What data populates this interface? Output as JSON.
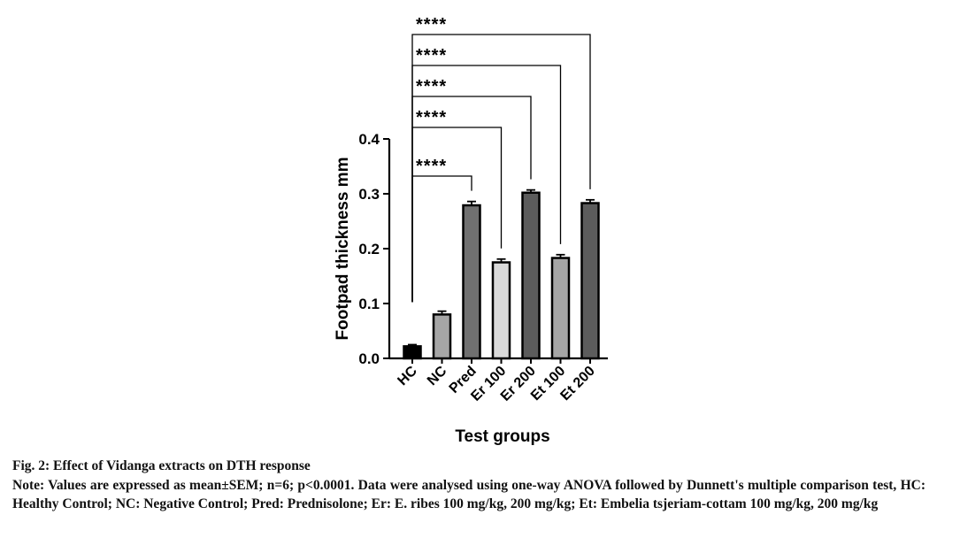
{
  "chart_data": {
    "type": "bar",
    "ylabel": "Footpad thickness mm",
    "xlabel": "Test groups",
    "categories": [
      "HC",
      "NC",
      "Pred",
      "Er 100",
      "Er 200",
      "Et 100",
      "Et 200"
    ],
    "values": [
      0.022,
      0.08,
      0.279,
      0.175,
      0.302,
      0.183,
      0.283
    ],
    "errors": [
      0.003,
      0.006,
      0.007,
      0.006,
      0.005,
      0.006,
      0.006
    ],
    "bar_colors": [
      "#000000",
      "#a6a6a6",
      "#707070",
      "#d9d9d9",
      "#5c5c5c",
      "#a6a6a6",
      "#5c5c5c"
    ],
    "ylim": [
      0,
      0.4
    ],
    "yticks": [
      "0.0",
      "0.1",
      "0.2",
      "0.3",
      "0.4"
    ],
    "comparisons": [
      {
        "from": "HC",
        "to": "Pred",
        "label": "****"
      },
      {
        "from": "HC",
        "to": "Er 100",
        "label": "****"
      },
      {
        "from": "HC",
        "to": "Er 200",
        "label": "****"
      },
      {
        "from": "HC",
        "to": "Et 100",
        "label": "****"
      },
      {
        "from": "HC",
        "to": "Et 200",
        "label": "****"
      }
    ]
  },
  "caption": {
    "title": "Fig. 2: Effect of Vidanga extracts on DTH response",
    "note": "Note: Values are expressed as mean±SEM; n=6; p<0.0001. Data were analysed using one-way ANOVA followed by Dunnett's multiple comparison test, HC: Healthy Control; NC: Negative Control; Pred: Prednisolone; Er: E. ribes 100 mg/kg, 200 mg/kg; Et: Embelia tsjeriam-cottam 100 mg/kg, 200 mg/kg"
  }
}
